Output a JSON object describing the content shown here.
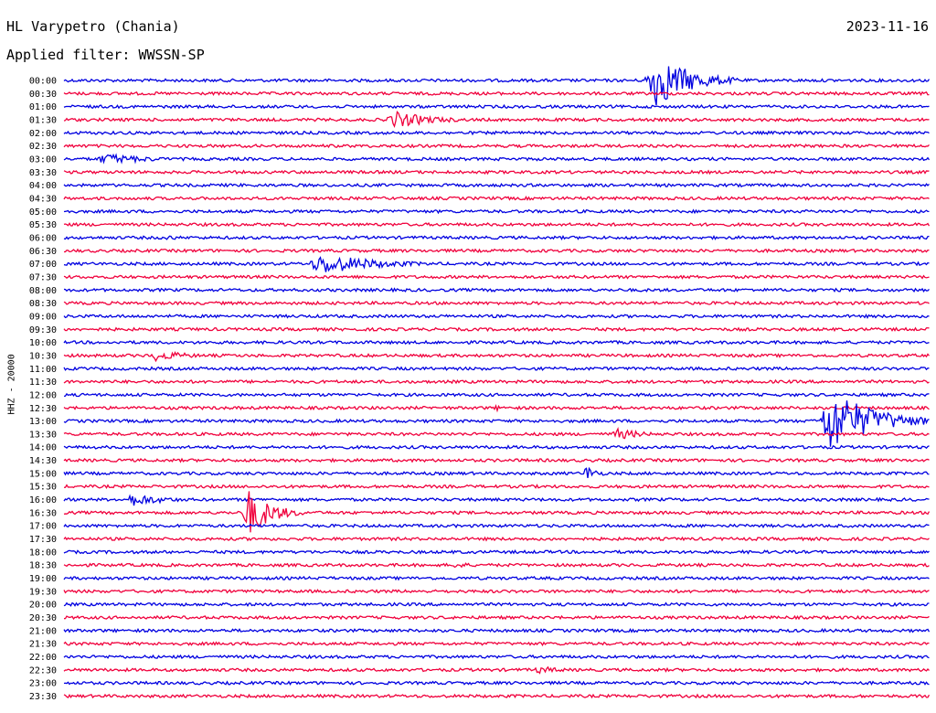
{
  "header": {
    "station": "HL Varypetro (Chania)",
    "filter": "Applied filter: WWSSN-SP",
    "date": "2023-11-16",
    "channel": "HHZ - 20000"
  },
  "colors": {
    "even": "#0000e0",
    "odd": "#f0003c"
  },
  "chart_data": {
    "type": "line",
    "title": "HL Varypetro (Chania)",
    "subtitle": "Applied filter: WWSSN-SP",
    "ylabel": "HHZ - 20000",
    "xlabel": "",
    "grid": false,
    "rows": [
      "00:00",
      "00:30",
      "01:00",
      "01:30",
      "02:00",
      "02:30",
      "03:00",
      "03:30",
      "04:00",
      "04:30",
      "05:00",
      "05:30",
      "06:00",
      "06:30",
      "07:00",
      "07:30",
      "08:00",
      "08:30",
      "09:00",
      "09:30",
      "10:00",
      "10:30",
      "11:00",
      "11:30",
      "12:00",
      "12:30",
      "13:00",
      "13:30",
      "14:00",
      "14:30",
      "15:00",
      "15:30",
      "16:00",
      "16:30",
      "17:00",
      "17:30",
      "18:00",
      "18:30",
      "19:00",
      "19:30",
      "20:00",
      "20:30",
      "21:00",
      "21:30",
      "22:00",
      "22:30",
      "23:00",
      "23:30"
    ],
    "x_range_minutes": [
      0,
      30
    ],
    "events": [
      {
        "row": "00:00",
        "minute": 20.5,
        "amplitude": 30,
        "duration": 1.2
      },
      {
        "row": "01:30",
        "minute": 11.5,
        "amplitude": 9,
        "duration": 1.4
      },
      {
        "row": "03:00",
        "minute": 1.5,
        "amplitude": 6,
        "duration": 1.6
      },
      {
        "row": "06:00",
        "minute": 3.6,
        "amplitude": 3,
        "duration": 0.6
      },
      {
        "row": "07:00",
        "minute": 9.0,
        "amplitude": 11,
        "duration": 2.0
      },
      {
        "row": "10:30",
        "minute": 3.2,
        "amplitude": 6,
        "duration": 1.2
      },
      {
        "row": "12:30",
        "minute": 15.0,
        "amplitude": 3,
        "duration": 0.5
      },
      {
        "row": "13:00",
        "minute": 26.6,
        "amplitude": 34,
        "duration": 1.5
      },
      {
        "row": "13:30",
        "minute": 19.2,
        "amplitude": 6,
        "duration": 1.0
      },
      {
        "row": "15:00",
        "minute": 18.1,
        "amplitude": 9,
        "duration": 0.4
      },
      {
        "row": "16:00",
        "minute": 2.4,
        "amplitude": 7,
        "duration": 1.2
      },
      {
        "row": "16:30",
        "minute": 6.4,
        "amplitude": 26,
        "duration": 0.8
      },
      {
        "row": "18:30",
        "minute": 13.6,
        "amplitude": 5,
        "duration": 0.4
      },
      {
        "row": "22:30",
        "minute": 16.5,
        "amplitude": 4,
        "duration": 1.0
      }
    ]
  }
}
